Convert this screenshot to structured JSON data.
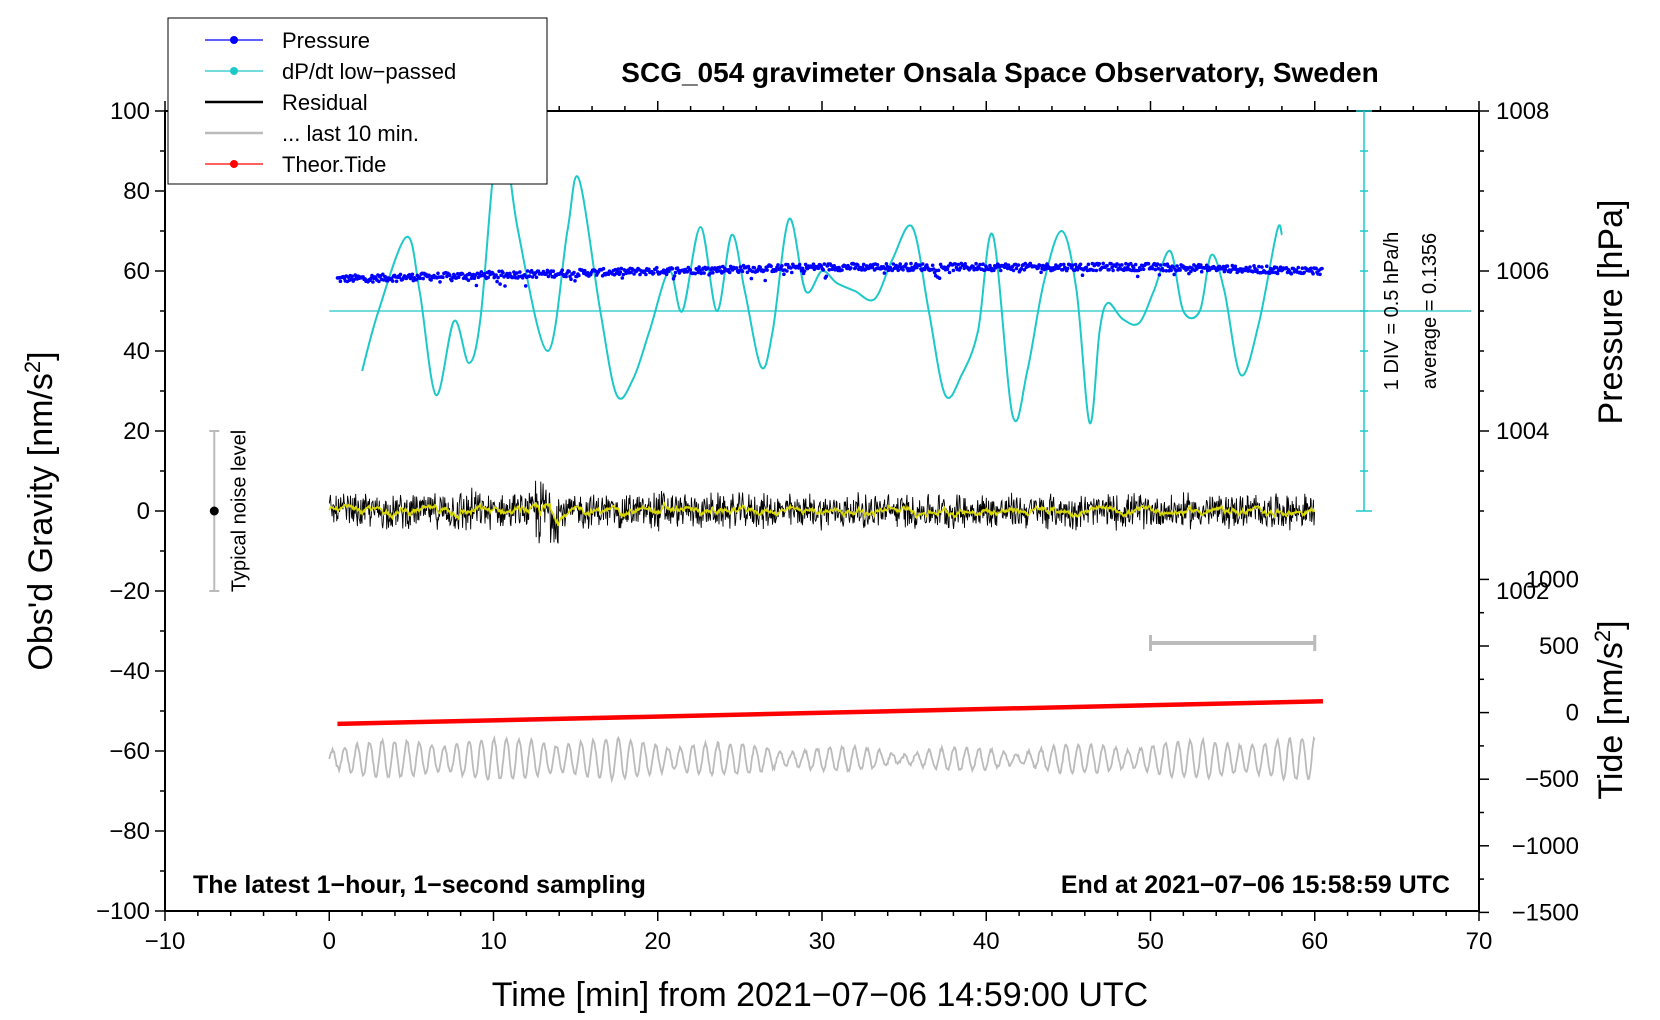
{
  "chart_data": {
    "type": "line",
    "title": "SCG_054 gravimeter Onsala Space Observatory, Sweden",
    "xlabel": "Time [min] from 2021−07−06 14:59:00 UTC",
    "ylabel_main": "Obs'd Gravity [nm/s",
    "ylabel_main_sup": "2",
    "ylabel_main_end": "]",
    "ylabel_pressure": "Pressure [hPa]",
    "ylabel_tide": "Tide [nm/s",
    "ylabel_tide_sup": "2",
    "ylabel_tide_end": "]",
    "xlim": [
      -10,
      70
    ],
    "ylim": [
      -100,
      100
    ],
    "x_ticks": [
      -10,
      0,
      10,
      20,
      30,
      40,
      50,
      60,
      70
    ],
    "x_tick_labels": [
      "−10",
      "0",
      "10",
      "20",
      "30",
      "40",
      "50",
      "60",
      "70"
    ],
    "y_ticks": [
      -100,
      -80,
      -60,
      -40,
      -20,
      0,
      20,
      40,
      60,
      80,
      100
    ],
    "y_tick_labels": [
      "−100",
      "−80",
      "−60",
      "−40",
      "−20",
      "0",
      "20",
      "40",
      "60",
      "80",
      "100"
    ],
    "pressure_axis": {
      "ticks": [
        1002,
        1004,
        1006,
        1008
      ],
      "tick_labels": [
        "1002",
        "1004",
        "1006",
        "1008"
      ],
      "ref_hpa": 1006,
      "ref_gravity": 60,
      "gravity_per_hpa": 20
    },
    "tide_axis": {
      "ticks": [
        -1500,
        -1000,
        -500,
        0,
        500,
        1000
      ],
      "tick_labels": [
        "−1500",
        "−1000",
        "−500",
        "0",
        "500",
        "1000"
      ],
      "gravity_at_zero": -50.4,
      "gravity_per_nms2": 0.0333
    },
    "legend": {
      "placement": "top-left",
      "entries": [
        {
          "label": "Pressure",
          "color": "#0000ff",
          "marker": true
        },
        {
          "label": "dP/dt low−passed",
          "color": "#1ec8c8",
          "marker": true
        },
        {
          "label": "Residual",
          "color": "#000000",
          "marker": false
        },
        {
          "label": "... last 10 min.",
          "color": "#bbbbbb",
          "marker": false
        },
        {
          "label": "Theor.Tide",
          "color": "#ff0000",
          "marker": true
        }
      ]
    },
    "series": [
      {
        "name": "Pressure",
        "unit": "hPa",
        "color": "#0000ff",
        "x": [
          0.5,
          10,
          20,
          30,
          40,
          50,
          60.5
        ],
        "values": [
          1005.9,
          1005.95,
          1006.0,
          1006.05,
          1006.05,
          1006.05,
          1006.0
        ]
      },
      {
        "name": "dP/dt low−passed",
        "color": "#1ec8c8",
        "baseline_gravity": 50,
        "x": [
          2,
          3,
          4.7,
          5.5,
          6.5,
          7.6,
          8.5,
          9.2,
          10.0,
          10.6,
          11.5,
          13.3,
          14.5,
          15.2,
          16.5,
          17.5,
          18.5,
          19.5,
          20.7,
          21.5,
          22.6,
          23.6,
          24.5,
          25.3,
          26.3,
          27.0,
          28.0,
          29.0,
          30.0,
          30.9,
          32.0,
          33.2,
          34.3,
          35.5,
          36.5,
          37.5,
          38.5,
          39.5,
          40.4,
          41.6,
          42.5,
          43.5,
          44.6,
          45.5,
          46.3,
          46.9,
          47.4,
          48.3,
          49.3,
          50.2,
          51.2,
          52.0,
          53.0,
          53.7,
          54.5,
          55.5,
          56.6,
          57.7,
          58.0
        ],
        "values": [
          35,
          50,
          68.5,
          55,
          29,
          47.5,
          37,
          48,
          85,
          95,
          70,
          40,
          70,
          83,
          50,
          29,
          33,
          45,
          60,
          50,
          71,
          50,
          69,
          55,
          36,
          45,
          73,
          55,
          60,
          57,
          55,
          53,
          63,
          71,
          50,
          29,
          34,
          45,
          69,
          24,
          35,
          57,
          70,
          55,
          22,
          45,
          52,
          48,
          47,
          55,
          65,
          50,
          50,
          64,
          55,
          34,
          47,
          70,
          69
        ]
      },
      {
        "name": "Residual",
        "color": "#000000",
        "x_range": [
          0,
          60
        ],
        "amplitude": 5,
        "mean": 0
      },
      {
        "name": "... last 10 min.",
        "color": "#bbbbbb",
        "x_range": [
          0,
          60
        ],
        "baseline": -62,
        "amplitude": 4
      },
      {
        "name": "Theor.Tide",
        "unit": "nm/s2",
        "color": "#ff0000",
        "x": [
          0.5,
          60.5
        ],
        "values": [
          -85,
          85
        ]
      }
    ],
    "annotations": {
      "noise_label": "Typical noise level",
      "noise_bar": {
        "x": -7,
        "y_low": -20,
        "y_high": 20,
        "center": 0
      },
      "ten_min_bar": {
        "x_start": 50,
        "x_end": 60,
        "y": -33
      },
      "scale_text_1": "1 DIV = 0.5 hPa/h",
      "scale_text_2": "average = 0.1356",
      "scale_bar": {
        "x": 63,
        "y_low": 0,
        "y_high": 100,
        "divisions": 10
      },
      "left_note": "The latest 1−hour, 1−second sampling",
      "right_note": "End at 2021−07−06 15:58:59 UTC"
    }
  }
}
